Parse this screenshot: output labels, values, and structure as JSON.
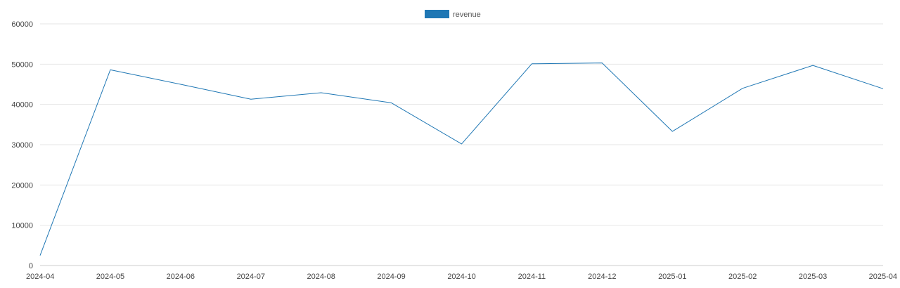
{
  "chart_data": {
    "type": "line",
    "title": "",
    "xlabel": "",
    "ylabel": "",
    "legend": {
      "position": "top-center"
    },
    "grid": {
      "y": true,
      "x": false
    },
    "ylim": [
      0,
      60000
    ],
    "yticks": [
      "0",
      "10000",
      "20000",
      "30000",
      "40000",
      "50000",
      "60000"
    ],
    "categories": [
      "2024-04",
      "2024-05",
      "2024-06",
      "2024-07",
      "2024-08",
      "2024-09",
      "2024-10",
      "2024-11",
      "2024-12",
      "2025-01",
      "2025-02",
      "2025-03",
      "2025-04"
    ],
    "series": [
      {
        "name": "revenue",
        "color": "#1f77b4",
        "values": [
          2500,
          48600,
          45000,
          41300,
          42900,
          40400,
          30200,
          50100,
          50300,
          33300,
          44000,
          49700,
          43900
        ]
      }
    ]
  }
}
